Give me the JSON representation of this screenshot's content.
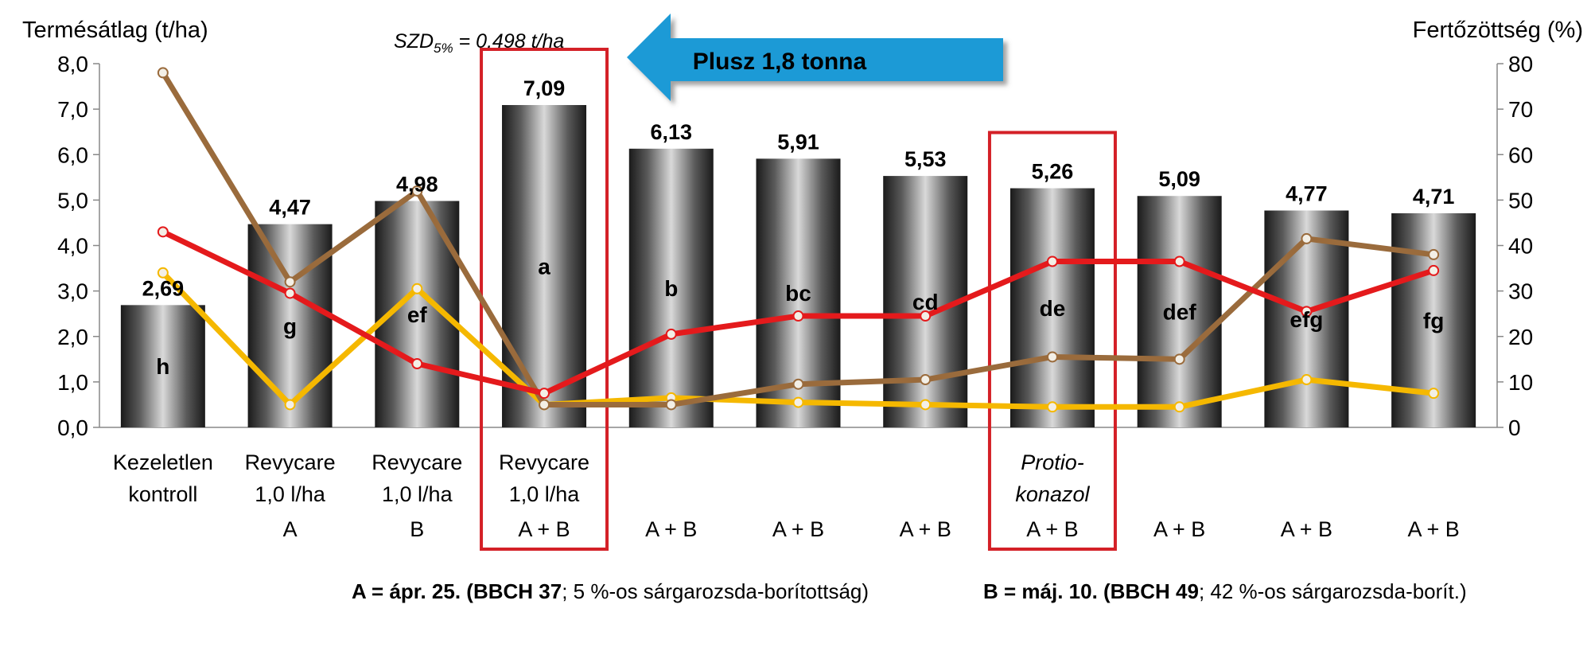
{
  "chart_data": {
    "type": "bar",
    "left_axis": {
      "title": "Termésátlag (t/ha)",
      "min": 0,
      "max": 8,
      "step": 1,
      "ticks": [
        "0,0",
        "1,0",
        "2,0",
        "3,0",
        "4,0",
        "5,0",
        "6,0",
        "7,0",
        "8,0"
      ]
    },
    "right_axis": {
      "title": "Fertőzöttség (%)",
      "min": 0,
      "max": 80,
      "step": 10,
      "ticks": [
        "0",
        "10",
        "20",
        "30",
        "40",
        "50",
        "60",
        "70",
        "80"
      ]
    },
    "categories": [
      {
        "lines": [
          "Kezeletlen",
          "kontroll"
        ],
        "italic": false
      },
      {
        "lines": [
          "Revycare",
          "1,0 l/ha",
          "A"
        ],
        "italic": false
      },
      {
        "lines": [
          "Revycare",
          "1,0 l/ha",
          "B"
        ],
        "italic": false
      },
      {
        "lines": [
          "Revycare",
          "1,0 l/ha",
          "A + B"
        ],
        "italic": false
      },
      {
        "lines": [
          "",
          "",
          "A + B"
        ],
        "italic": false
      },
      {
        "lines": [
          "",
          "",
          "A + B"
        ],
        "italic": false
      },
      {
        "lines": [
          "",
          "",
          "A + B"
        ],
        "italic": false
      },
      {
        "lines": [
          "Protio-",
          "konazol",
          "A + B"
        ],
        "italic": true
      },
      {
        "lines": [
          "",
          "",
          "A + B"
        ],
        "italic": false
      },
      {
        "lines": [
          "",
          "",
          "A + B"
        ],
        "italic": false
      },
      {
        "lines": [
          "",
          "",
          "A + B"
        ],
        "italic": false
      }
    ],
    "values": [
      2.69,
      4.47,
      4.98,
      7.09,
      6.13,
      5.91,
      5.53,
      5.26,
      5.09,
      4.77,
      4.71
    ],
    "value_labels": [
      "2,69",
      "4,47",
      "4,98",
      "7,09",
      "6,13",
      "5,91",
      "5,53",
      "5,26",
      "5,09",
      "4,77",
      "4,71"
    ],
    "group_letters": [
      "h",
      "g",
      "ef",
      "a",
      "b",
      "bc",
      "cd",
      "de",
      "def",
      "efg",
      "fg"
    ],
    "lines": [
      {
        "color": "#e41a1c",
        "axis": "right",
        "values": [
          43,
          29.5,
          14,
          7.5,
          20.5,
          24.5,
          24.5,
          36.5,
          36.5,
          25.5,
          34.5
        ]
      },
      {
        "color": "#9a6b3c",
        "axis": "right",
        "values": [
          78,
          32,
          52,
          5,
          5,
          9.5,
          10.5,
          15.5,
          15,
          41.5,
          38
        ]
      },
      {
        "color": "#f5b800",
        "axis": "right",
        "values": [
          34,
          5,
          30.5,
          5,
          6.5,
          5.5,
          5,
          4.5,
          4.5,
          10.5,
          7.5
        ]
      }
    ],
    "highlighted_categories": [
      3,
      7
    ],
    "annotations": {
      "szd": {
        "main": "SZD",
        "sub": "5%",
        "rest": " = 0,498 t/ha"
      },
      "arrow_text": "Plusz 1,8 tonna"
    }
  },
  "footnote": {
    "a_bold": "A = ápr. 25. (BBCH 37",
    "a_rest": "; 5 %-os sárgarozsda-borítottság)",
    "b_bold": "B = máj. 10. (BBCH 49",
    "b_rest": "; 42 %-os sárgarozsda-borít.)"
  },
  "colors": {
    "highlight": "#d42027",
    "arrow": "#1e9ad6",
    "bar_dark": "#1a1a1a",
    "bar_light": "#d8d8d8"
  }
}
